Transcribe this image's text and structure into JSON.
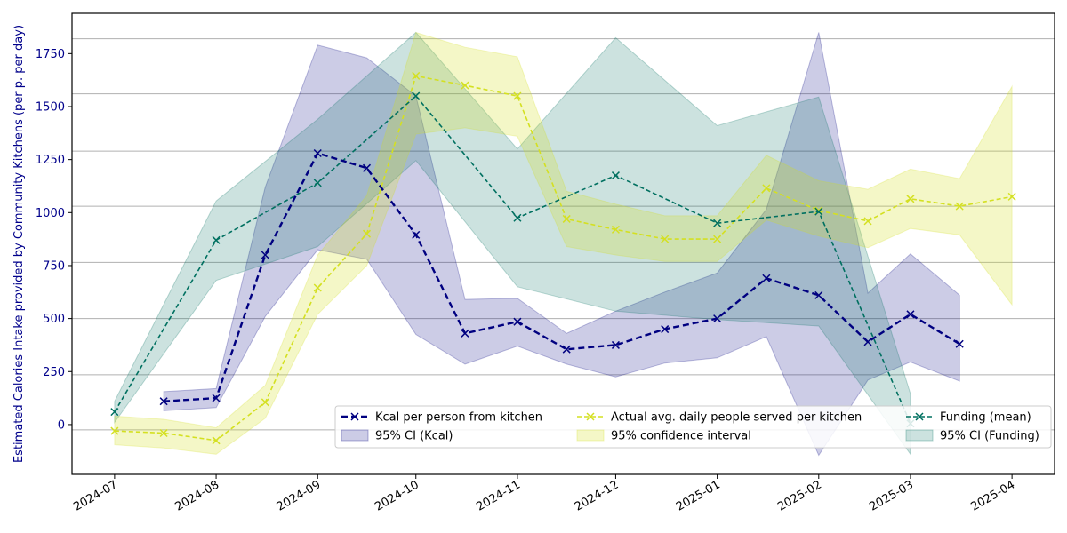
{
  "chart_data": {
    "type": "line",
    "title": "",
    "xlabel": "",
    "ylabel": "Estimated Calories Intake provided by Community Kitchens (per p. per day)",
    "xlim": [
      "2024-06-18",
      "2025-04-14"
    ],
    "ylim": [
      -235,
      1940
    ],
    "x_ticks": [
      "2024-07",
      "2024-08",
      "2024-09",
      "2024-10",
      "2024-11",
      "2024-12",
      "2025-01",
      "2025-02",
      "2025-03",
      "2025-04"
    ],
    "y_ticks": [
      0,
      250,
      500,
      750,
      1000,
      1250,
      1500,
      1750
    ],
    "grid": {
      "horizontal": true,
      "vertical": false,
      "y_lines": [
        -25,
        1030,
        1290,
        1560,
        1820,
        765,
        500,
        235
      ]
    },
    "legend": {
      "placement": "lower-right",
      "columns": 3
    },
    "series": [
      {
        "name": "Kcal per person from kitchen",
        "color": "#000080",
        "style": "dashed",
        "marker": "x",
        "points": [
          {
            "x": "2024-07-16",
            "y": 110,
            "lo": 65,
            "hi": 155
          },
          {
            "x": "2024-08-01",
            "y": 125,
            "lo": 80,
            "hi": 170
          },
          {
            "x": "2024-08-16",
            "y": 800,
            "lo": 510,
            "hi": 1120
          },
          {
            "x": "2024-09-01",
            "y": 1280,
            "lo": 825,
            "hi": 1790
          },
          {
            "x": "2024-09-16",
            "y": 1210,
            "lo": 780,
            "hi": 1730
          },
          {
            "x": "2024-10-01",
            "y": 895,
            "lo": 425,
            "hi": 1550
          },
          {
            "x": "2024-10-16",
            "y": 430,
            "lo": 285,
            "hi": 590
          },
          {
            "x": "2024-11-01",
            "y": 485,
            "lo": 370,
            "hi": 595
          },
          {
            "x": "2024-11-16",
            "y": 355,
            "lo": 285,
            "hi": 430
          },
          {
            "x": "2024-12-01",
            "y": 375,
            "lo": 225,
            "hi": 535
          },
          {
            "x": "2024-12-16",
            "y": 450,
            "lo": 290,
            "hi": 625
          },
          {
            "x": "2025-01-01",
            "y": 500,
            "lo": 315,
            "hi": 715
          },
          {
            "x": "2025-01-16",
            "y": 690,
            "lo": 415,
            "hi": 1015
          },
          {
            "x": "2025-02-01",
            "y": 610,
            "lo": -145,
            "hi": 1850
          },
          {
            "x": "2025-02-16",
            "y": 390,
            "lo": 210,
            "hi": 620
          },
          {
            "x": "2025-03-01",
            "y": 520,
            "lo": 295,
            "hi": 805
          },
          {
            "x": "2025-03-16",
            "y": 380,
            "lo": 205,
            "hi": 610
          }
        ]
      },
      {
        "name": "Actual avg. daily people served per kitchen",
        "color": "#d4e021",
        "style": "dashed",
        "marker": "x",
        "points": [
          {
            "x": "2024-07-01",
            "y": -30,
            "lo": -95,
            "hi": 40
          },
          {
            "x": "2024-07-16",
            "y": -40,
            "lo": -110,
            "hi": 25
          },
          {
            "x": "2024-08-01",
            "y": -75,
            "lo": -140,
            "hi": -15
          },
          {
            "x": "2024-08-16",
            "y": 105,
            "lo": 30,
            "hi": 185
          },
          {
            "x": "2024-09-01",
            "y": 645,
            "lo": 520,
            "hi": 800
          },
          {
            "x": "2024-09-16",
            "y": 900,
            "lo": 750,
            "hi": 1080
          },
          {
            "x": "2024-10-01",
            "y": 1645,
            "lo": 1370,
            "hi": 1850
          },
          {
            "x": "2024-10-16",
            "y": 1600,
            "lo": 1400,
            "hi": 1780
          },
          {
            "x": "2024-11-01",
            "y": 1550,
            "lo": 1360,
            "hi": 1735
          },
          {
            "x": "2024-11-16",
            "y": 970,
            "lo": 840,
            "hi": 1100
          },
          {
            "x": "2024-12-01",
            "y": 920,
            "lo": 800,
            "hi": 1040
          },
          {
            "x": "2024-12-16",
            "y": 875,
            "lo": 770,
            "hi": 985
          },
          {
            "x": "2025-01-01",
            "y": 875,
            "lo": 770,
            "hi": 985
          },
          {
            "x": "2025-01-16",
            "y": 1115,
            "lo": 965,
            "hi": 1270
          },
          {
            "x": "2025-02-01",
            "y": 1010,
            "lo": 890,
            "hi": 1150
          },
          {
            "x": "2025-02-16",
            "y": 960,
            "lo": 835,
            "hi": 1110
          },
          {
            "x": "2025-03-01",
            "y": 1065,
            "lo": 925,
            "hi": 1205
          },
          {
            "x": "2025-03-16",
            "y": 1030,
            "lo": 895,
            "hi": 1160
          },
          {
            "x": "2025-04-01",
            "y": 1075,
            "lo": 565,
            "hi": 1595
          }
        ]
      },
      {
        "name": "Funding (mean)",
        "color": "#007060",
        "style": "dashed",
        "marker": "x",
        "points": [
          {
            "x": "2024-07-01",
            "y": 60,
            "lo": 10,
            "hi": 110
          },
          {
            "x": "2024-08-01",
            "y": 870,
            "lo": 680,
            "hi": 1055
          },
          {
            "x": "2024-09-01",
            "y": 1140,
            "lo": 840,
            "hi": 1440
          },
          {
            "x": "2024-10-01",
            "y": 1550,
            "lo": 1245,
            "hi": 1850
          },
          {
            "x": "2024-11-01",
            "y": 975,
            "lo": 650,
            "hi": 1300
          },
          {
            "x": "2024-12-01",
            "y": 1175,
            "lo": 535,
            "hi": 1825
          },
          {
            "x": "2025-01-01",
            "y": 950,
            "lo": 495,
            "hi": 1410
          },
          {
            "x": "2025-02-01",
            "y": 1005,
            "lo": 465,
            "hi": 1545
          },
          {
            "x": "2025-03-01",
            "y": 5,
            "lo": -140,
            "hi": 145
          }
        ]
      }
    ],
    "ci_labels": [
      "95% CI (Kcal)",
      "95% confidence interval",
      "95% CI (Funding)"
    ]
  }
}
